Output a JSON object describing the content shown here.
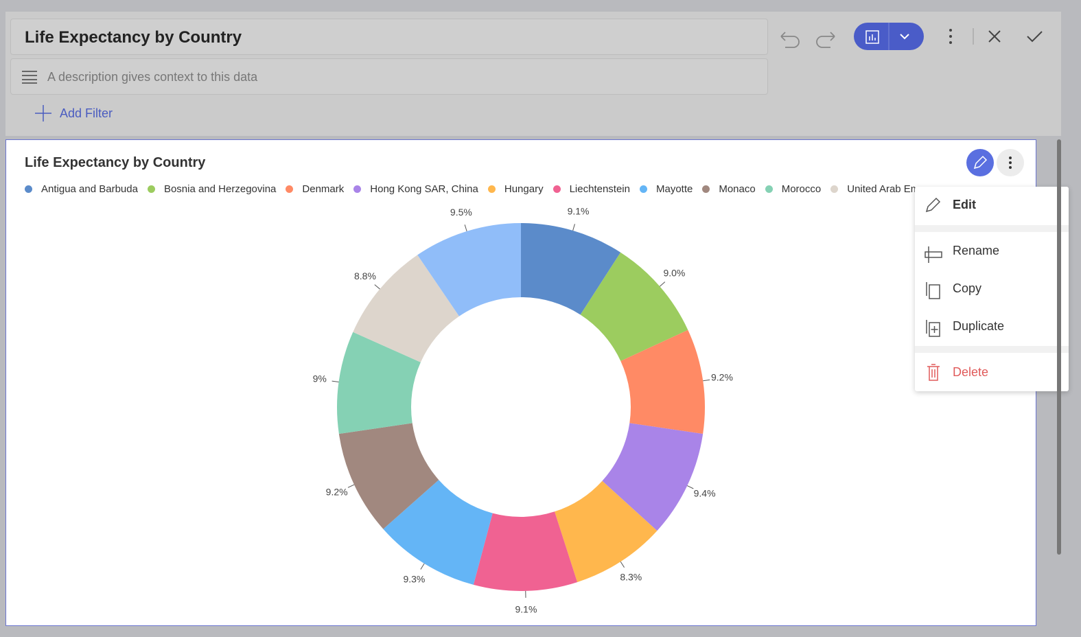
{
  "header": {
    "title": "Life Expectancy by Country",
    "description": "A description gives context to this data",
    "add_filter": "Add Filter"
  },
  "menu": {
    "items": [
      "Edit",
      "Rename",
      "Copy",
      "Duplicate",
      "Delete"
    ]
  },
  "chart_data": {
    "type": "pie",
    "title": "Life Expectancy by Country",
    "donut": true,
    "categories": [
      "Antigua and Barbuda",
      "Bosnia and Herzegovina",
      "Denmark",
      "Hong Kong SAR, China",
      "Hungary",
      "Liechtenstein",
      "Mayotte",
      "Monaco",
      "Morocco",
      "United Arab Emirates",
      null
    ],
    "values": [
      9.1,
      9.0,
      9.2,
      9.4,
      8.3,
      9.1,
      9.3,
      9.2,
      9,
      8.8,
      9.5
    ],
    "value_labels": [
      "9.1%",
      "9.0%",
      "9.2%",
      "9.4%",
      "8.3%",
      "9.1%",
      "9.3%",
      "9.2%",
      "9%",
      "8.8%",
      "9.5%"
    ],
    "colors": [
      "#5b8bca",
      "#9ccc5f",
      "#ff8a65",
      "#a984e8",
      "#ffb74d",
      "#f06292",
      "#64b5f6",
      "#a1887f",
      "#85d1b4",
      "#ddd5cc",
      "#90bdf9"
    ]
  }
}
